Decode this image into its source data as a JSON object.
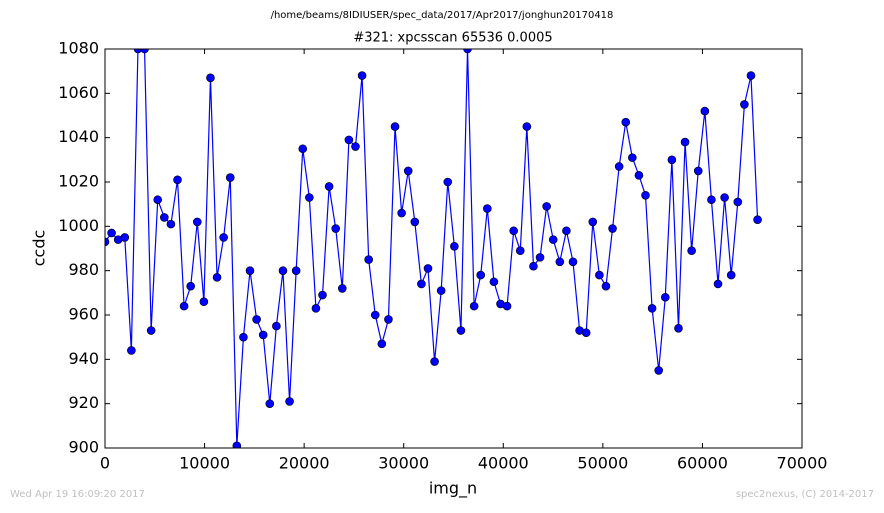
{
  "chart_data": {
    "type": "line",
    "suptitle": "/home/beams/8IDIUSER/spec_data/2017/Apr2017/jonghun20170418",
    "title": "#321: xpcsscan 65536 0.0005",
    "xlabel": "img_n",
    "ylabel": "ccdc",
    "footer_left": "Wed Apr 19 16:09:20 2017",
    "footer_right": "spec2nexus, (C) 2014-2017",
    "color": "#0000ff",
    "marker": "o",
    "x": [
      0,
      662,
      1324,
      1986,
      2648,
      3310,
      3972,
      4634,
      5296,
      5958,
      6620,
      7282,
      7944,
      8606,
      9268,
      9930,
      10592,
      11254,
      11916,
      12578,
      13240,
      13902,
      14564,
      15226,
      15888,
      16550,
      17212,
      17874,
      18536,
      19198,
      19860,
      20522,
      21184,
      21846,
      22508,
      23170,
      23832,
      24494,
      25156,
      25818,
      26480,
      27142,
      27804,
      28466,
      29128,
      29790,
      30452,
      31114,
      31776,
      32438,
      33100,
      33762,
      34424,
      35086,
      35748,
      36410,
      37072,
      37734,
      38396,
      39058,
      39720,
      40382,
      41044,
      41706,
      42368,
      43030,
      43692,
      44354,
      45016,
      45678,
      46340,
      47002,
      47664,
      48326,
      48988,
      49650,
      50312,
      50974,
      51636,
      52298,
      52960,
      53622,
      54284,
      54946,
      55608,
      56270,
      56932,
      57594,
      58256,
      58918,
      59580,
      60242,
      60904,
      61566,
      62228,
      62890,
      63552,
      64214,
      64876,
      65538
    ],
    "values": [
      993,
      997,
      994,
      995,
      944,
      1080,
      1080,
      953,
      1012,
      1004,
      1001,
      1021,
      964,
      973,
      1002,
      966,
      1067,
      977,
      995,
      1022,
      901,
      950,
      980,
      958,
      951,
      920,
      955,
      980,
      921,
      980,
      1035,
      1013,
      963,
      969,
      1018,
      999,
      972,
      1039,
      1036,
      1068,
      985,
      960,
      947,
      958,
      1045,
      1006,
      1025,
      1002,
      974,
      981,
      939,
      971,
      1020,
      991,
      953,
      1080,
      964,
      978,
      1008,
      975,
      965,
      964,
      998,
      989,
      1045,
      982,
      986,
      1009,
      994,
      984,
      998,
      984,
      953,
      952,
      1002,
      978,
      973,
      999,
      1027,
      1047,
      1031,
      1023,
      1014,
      963,
      935,
      968,
      1030,
      954,
      1038,
      989,
      1025,
      1052,
      1012,
      974,
      1013,
      978,
      1011,
      1055,
      1068,
      1003
    ],
    "xlim": [
      0,
      70000
    ],
    "xticks": [
      0,
      10000,
      20000,
      30000,
      40000,
      50000,
      60000,
      70000
    ],
    "ylim": [
      900,
      1080
    ],
    "yticks": [
      900,
      920,
      940,
      960,
      980,
      1000,
      1020,
      1040,
      1060,
      1080
    ]
  }
}
